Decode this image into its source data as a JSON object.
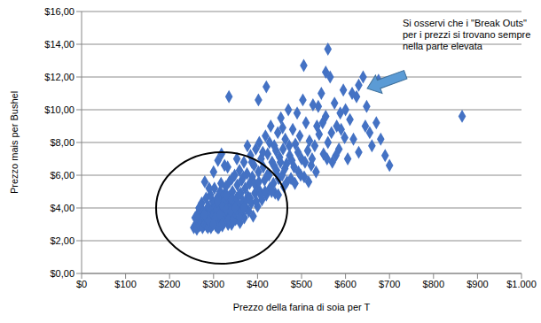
{
  "chart_data": {
    "type": "scatter",
    "x_label": "Prezzo della farina di soia per T",
    "y_label": "Prezzo mais per Bushel",
    "annotation": "Si osservi che i \"Break Outs\" per i prezzi si trovano sempre nella parte elevata",
    "color": "#4472c4",
    "marker": "diamond",
    "grid": true,
    "xlim": [
      0,
      1000
    ],
    "xticks": [
      {
        "value": 0,
        "label": "$0"
      },
      {
        "value": 100,
        "label": "$100"
      },
      {
        "value": 200,
        "label": "$200"
      },
      {
        "value": 300,
        "label": "$300"
      },
      {
        "value": 400,
        "label": "$400"
      },
      {
        "value": 500,
        "label": "$500"
      },
      {
        "value": 600,
        "label": "$600"
      },
      {
        "value": 700,
        "label": "$700"
      },
      {
        "value": 800,
        "label": "$800"
      },
      {
        "value": 900,
        "label": "$900"
      },
      {
        "value": 1000,
        "label": "$1.000"
      }
    ],
    "ylim": [
      0,
      16
    ],
    "yticks": [
      {
        "value": 0,
        "label": "$0,00"
      },
      {
        "value": 2,
        "label": "$2,00"
      },
      {
        "value": 4,
        "label": "$4,00"
      },
      {
        "value": 6,
        "label": "$6,00"
      },
      {
        "value": 8,
        "label": "$8,00"
      },
      {
        "value": 10,
        "label": "$10,00"
      },
      {
        "value": 12,
        "label": "$12,00"
      },
      {
        "value": 14,
        "label": "$14,00"
      },
      {
        "value": 16,
        "label": "$16,00"
      }
    ],
    "x": [
      255,
      260,
      262,
      265,
      268,
      270,
      272,
      275,
      278,
      280,
      282,
      284,
      286,
      288,
      290,
      292,
      294,
      296,
      298,
      300,
      301,
      303,
      305,
      306,
      308,
      310,
      311,
      313,
      315,
      316,
      318,
      320,
      321,
      323,
      325,
      326,
      328,
      330,
      331,
      333,
      335,
      336,
      338,
      340,
      341,
      343,
      345,
      346,
      348,
      350,
      352,
      354,
      355,
      357,
      359,
      360,
      362,
      364,
      365,
      367,
      369,
      370,
      372,
      374,
      376,
      378,
      380,
      382,
      384,
      386,
      388,
      390,
      392,
      394,
      396,
      398,
      400,
      402,
      404,
      406,
      408,
      410,
      413,
      416,
      418,
      420,
      423,
      426,
      428,
      430,
      433,
      436,
      438,
      440,
      443,
      446,
      448,
      450,
      453,
      456,
      458,
      460,
      463,
      466,
      470,
      473,
      476,
      480,
      483,
      486,
      490,
      493,
      496,
      500,
      503,
      506,
      510,
      514,
      518,
      522,
      526,
      530,
      535,
      540,
      545,
      550,
      555,
      560,
      565,
      570,
      575,
      580,
      585,
      590,
      595,
      600,
      605,
      610,
      618,
      625,
      630,
      640,
      648,
      655,
      660,
      670,
      680,
      690,
      700,
      865,
      560,
      505,
      420,
      402,
      335,
      630,
      555,
      258,
      263,
      267,
      273,
      277,
      283,
      287,
      293,
      297,
      302,
      307,
      312,
      317,
      322,
      327,
      332,
      337,
      342,
      347,
      353,
      358,
      363,
      368,
      373,
      377,
      383,
      387,
      393,
      397,
      403,
      407,
      412,
      417,
      422,
      427,
      432,
      437,
      442,
      447,
      452,
      457,
      462,
      467,
      472,
      478,
      485,
      492,
      498,
      508,
      516,
      524,
      533,
      538,
      548,
      558,
      568,
      578,
      588,
      598,
      615,
      645,
      675,
      280,
      300,
      310,
      290,
      318,
      325,
      304,
      309,
      314,
      319,
      324,
      329,
      334,
      339,
      344,
      349,
      279,
      289,
      299,
      309,
      319,
      329,
      339,
      349,
      359,
      369
    ],
    "values": [
      2.8,
      3.0,
      2.7,
      3.2,
      2.9,
      3.5,
      3.1,
      2.8,
      3.4,
      3.0,
      3.8,
      2.9,
      3.3,
      4.1,
      3.6,
      3.0,
      2.8,
      3.9,
      4.4,
      3.2,
      3.7,
      4.0,
      2.9,
      3.5,
      4.6,
      3.1,
      4.2,
      3.8,
      5.0,
      3.3,
      4.5,
      2.9,
      3.6,
      4.8,
      4.0,
      3.2,
      5.3,
      3.7,
      4.3,
      3.0,
      4.7,
      5.6,
      3.5,
      4.1,
      3.0,
      5.0,
      3.8,
      4.4,
      6.0,
      3.3,
      4.6,
      5.4,
      3.9,
      4.2,
      6.3,
      3.1,
      4.9,
      5.7,
      3.6,
      4.4,
      6.8,
      3.4,
      5.2,
      4.0,
      6.1,
      4.7,
      3.8,
      5.5,
      7.2,
      4.3,
      5.9,
      3.5,
      6.6,
      4.9,
      7.6,
      5.3,
      4.1,
      6.2,
      8.0,
      5.0,
      7.0,
      4.5,
      6.5,
      5.7,
      8.4,
      4.8,
      7.3,
      6.0,
      5.2,
      9.0,
      6.8,
      5.5,
      7.8,
      4.9,
      6.3,
      8.6,
      5.8,
      7.1,
      9.5,
      6.0,
      7.6,
      5.3,
      8.2,
      6.7,
      10.0,
      7.2,
      5.8,
      8.8,
      6.5,
      7.9,
      9.8,
      6.2,
      8.4,
      7.0,
      10.6,
      5.9,
      9.2,
      7.5,
      8.1,
      6.6,
      10.3,
      7.8,
      9.0,
      8.5,
      11.0,
      7.3,
      9.6,
      8.0,
      12.0,
      6.8,
      10.4,
      9.0,
      7.6,
      8.8,
      11.2,
      10.0,
      7.0,
      9.4,
      8.2,
      10.8,
      7.4,
      12.0,
      10.2,
      8.6,
      7.8,
      9.2,
      8.2,
      7.2,
      6.6,
      9.6,
      13.7,
      12.7,
      11.4,
      10.6,
      10.8,
      11.5,
      12.3,
      3.4,
      3.6,
      4.0,
      4.3,
      3.8,
      4.6,
      2.8,
      4.8,
      3.4,
      5.2,
      3.9,
      2.8,
      5.5,
      3.4,
      4.5,
      6.5,
      4.0,
      5.8,
      3.6,
      7.0,
      4.8,
      3.8,
      5.9,
      4.4,
      7.8,
      4.6,
      6.8,
      5.5,
      4.4,
      5.6,
      4.8,
      7.4,
      5.0,
      6.0,
      8.0,
      5.0,
      6.6,
      7.5,
      4.8,
      6.8,
      8.9,
      6.4,
      5.6,
      7.8,
      6.9,
      5.5,
      7.4,
      6.0,
      6.8,
      5.6,
      7.0,
      6.2,
      10.2,
      9.2,
      7.0,
      8.6,
      7.2,
      9.8,
      8.3,
      11.0,
      9.0,
      11.8,
      5.6,
      6.2,
      6.9,
      5.2,
      7.3,
      6.6,
      3.4,
      2.8,
      3.6,
      4.2,
      3.1,
      3.9,
      3.3,
      4.6,
      3.2,
      3.7,
      3.6,
      3.2,
      3.0,
      4.4,
      3.0,
      4.8,
      3.8,
      4.0,
      3.4,
      4.0
    ]
  }
}
